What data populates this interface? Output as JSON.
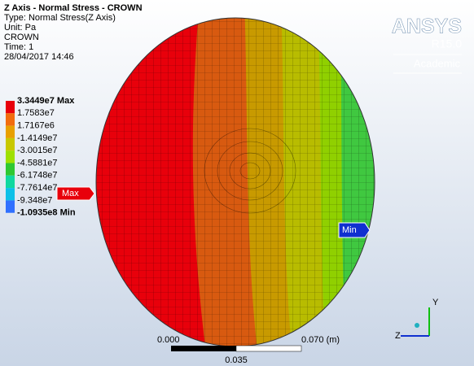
{
  "header": {
    "lines": [
      "Z Axis - Normal Stress - CROWN",
      "Type: Normal Stress(Z Axis)",
      "Unit: Pa",
      "CROWN",
      "Time: 1",
      "28/04/2017 14:46"
    ]
  },
  "legend": {
    "labels": [
      "3.3449e7 Max",
      "1.7583e7",
      "1.7167e6",
      "-1.4149e7",
      "-3.0015e7",
      "-4.5881e7",
      "-6.1748e7",
      "-7.7614e7",
      "-9.348e7",
      "-1.0935e8 Min"
    ],
    "colors": [
      "#e8000b",
      "#f26c0e",
      "#e8a000",
      "#c8c800",
      "#9ee000",
      "#2ec832",
      "#10d8a0",
      "#0cc0e8",
      "#3070ff"
    ]
  },
  "logo": {
    "name": "ANSYS",
    "version": "R15.0",
    "edition": "Academic"
  },
  "probes": {
    "max": "Max",
    "min": "Min"
  },
  "scale_bar": {
    "start": "0.000",
    "end": "0.070 (m)",
    "mid": "0.035"
  },
  "triad": {
    "y": "Y",
    "z": "Z"
  }
}
